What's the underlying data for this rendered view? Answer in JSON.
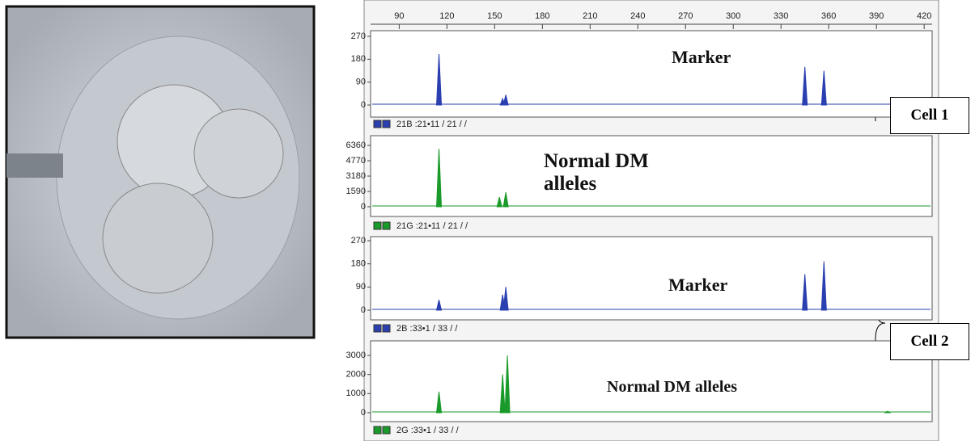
{
  "chart_data": [
    {
      "type": "peak",
      "color": "#2a3fb0",
      "xlim": [
        72,
        425
      ],
      "xticks": [
        90,
        120,
        150,
        180,
        210,
        240,
        270,
        300,
        330,
        360,
        390,
        420
      ],
      "ylim": [
        0,
        270
      ],
      "yticks": [
        0,
        90,
        180,
        270
      ],
      "x": [
        115,
        155,
        157,
        345,
        357
      ],
      "values": [
        200,
        25,
        40,
        150,
        135
      ],
      "annotation": "Marker",
      "footer": "21B :21•11 / 21 / /"
    },
    {
      "type": "peak",
      "color": "#1a9a2a",
      "xlim": [
        72,
        425
      ],
      "ylim": [
        0,
        6360
      ],
      "yticks": [
        0,
        1590,
        3180,
        4770,
        6360
      ],
      "x": [
        115,
        153,
        157
      ],
      "values": [
        6000,
        1000,
        1500
      ],
      "annotation": "Normal DM alleles",
      "footer": "21G :21•11 / 21 / /"
    },
    {
      "type": "peak",
      "color": "#2a3fb0",
      "xlim": [
        72,
        425
      ],
      "ylim": [
        0,
        270
      ],
      "yticks": [
        0,
        90,
        180,
        270
      ],
      "x": [
        115,
        155,
        157,
        345,
        357
      ],
      "values": [
        40,
        60,
        90,
        140,
        190
      ],
      "annotation": "Marker",
      "footer": "2B :33•1 / 33 / /"
    },
    {
      "type": "peak",
      "color": "#1a9a2a",
      "xlim": [
        72,
        425
      ],
      "ylim": [
        0,
        3000
      ],
      "yticks": [
        0,
        1000,
        2000,
        3000
      ],
      "x": [
        115,
        155,
        158,
        397
      ],
      "values": [
        1100,
        2000,
        3000,
        80
      ],
      "annotation": "Normal DM alleles",
      "footer": "2G :33•1 / 33 / /"
    }
  ],
  "cells": [
    "Cell 1",
    "Cell 2"
  ]
}
